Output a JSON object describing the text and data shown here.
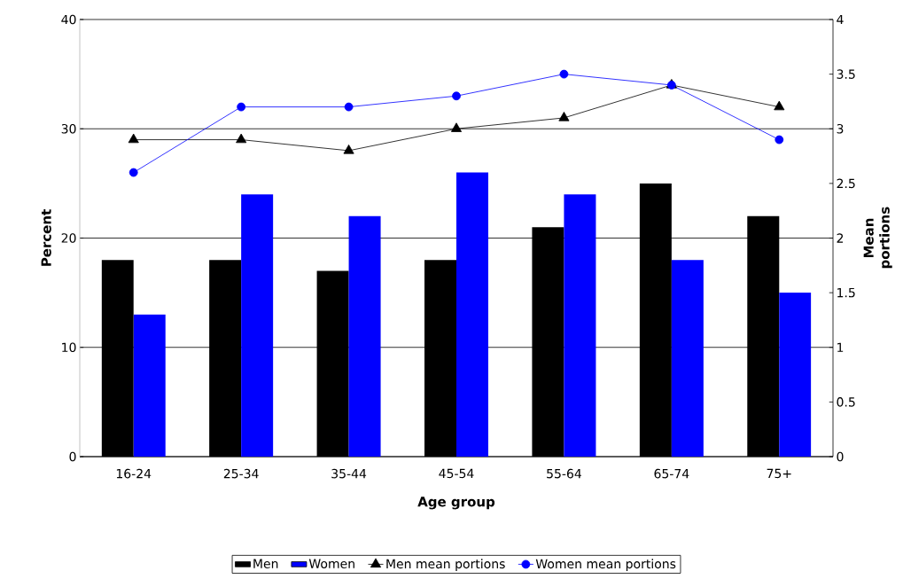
{
  "chart_data": {
    "type": "bar",
    "xlabel": "Age group",
    "ylabel": "Percent",
    "y2label": "Mean portions",
    "categories": [
      "16-24",
      "25-34",
      "35-44",
      "45-54",
      "55-64",
      "65-74",
      "75+"
    ],
    "series": [
      {
        "name": "Men",
        "color": "#000000",
        "values": [
          18,
          18,
          17,
          18,
          21,
          25,
          22
        ]
      },
      {
        "name": "Women",
        "color": "#0000ff",
        "values": [
          13,
          24,
          22,
          26,
          24,
          18,
          15
        ]
      },
      {
        "name": "Men mean portions",
        "type": "line",
        "axis": "y2",
        "marker": "triangle",
        "color": "#000000",
        "values": [
          2.9,
          2.9,
          2.8,
          3.0,
          3.1,
          3.4,
          3.2
        ]
      },
      {
        "name": "Women mean portions",
        "type": "line",
        "axis": "y2",
        "marker": "circle",
        "color": "#0000ff",
        "values": [
          2.6,
          3.2,
          3.2,
          3.3,
          3.5,
          3.4,
          2.9
        ]
      }
    ],
    "ylim": [
      0,
      40
    ],
    "yticks": [
      0,
      10,
      20,
      30,
      40
    ],
    "y2lim": [
      0,
      4
    ],
    "y2ticks": [
      0,
      0.5,
      1,
      1.5,
      2,
      2.5,
      3,
      3.5,
      4
    ],
    "grid": "y",
    "legend": "bottom"
  }
}
